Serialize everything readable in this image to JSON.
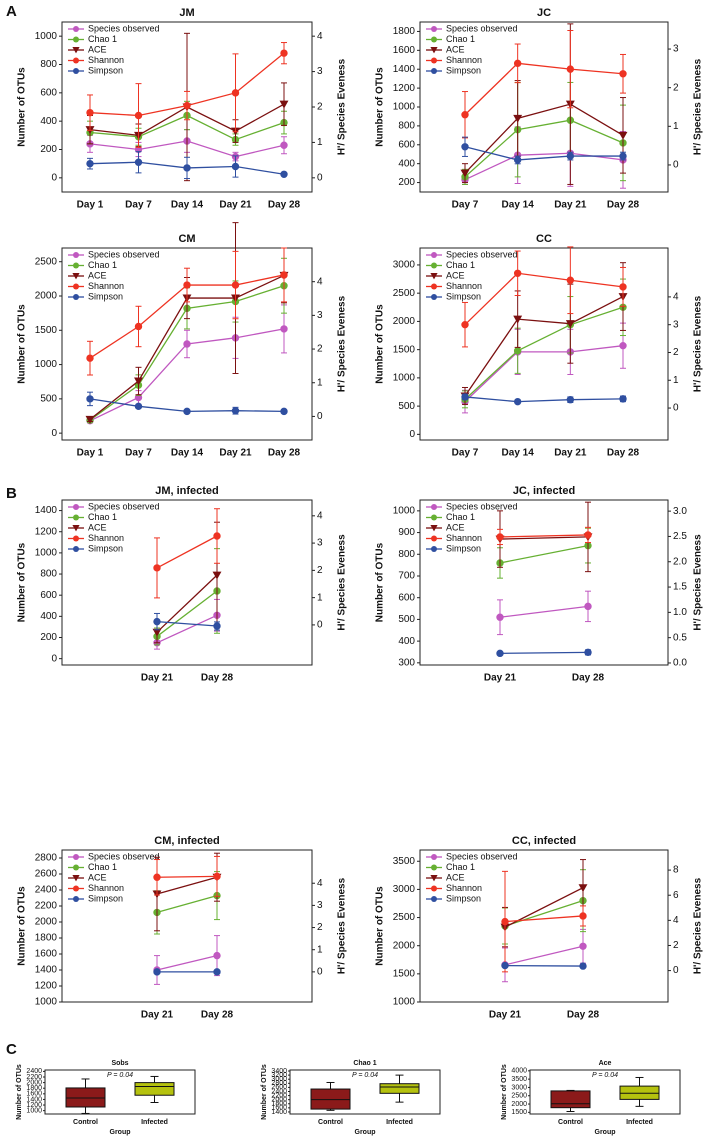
{
  "panels": [
    "A",
    "B",
    "C"
  ],
  "chart_data": [
    {
      "type": "line",
      "title": "JM",
      "categories": [
        "Day 1",
        "Day 7",
        "Day 14",
        "Day 21",
        "Day 28"
      ],
      "ylabel": "Number of OTUs",
      "y2label": "H'/ Species Eveness",
      "legend": "upper left",
      "ylim": [
        -100,
        1100
      ],
      "yticks": [
        0,
        200,
        400,
        600,
        800,
        1000
      ],
      "y2lim": [
        -0.4,
        4.4
      ],
      "y2ticks": [
        0,
        1,
        2,
        3,
        4
      ],
      "series": [
        {
          "name": "Species observed",
          "color": "#c058c0",
          "marker": "circle",
          "values": [
            240,
            200,
            260,
            150,
            230
          ],
          "errors": [
            60,
            50,
            80,
            30,
            60
          ]
        },
        {
          "name": "Chao 1",
          "color": "#66b032",
          "marker": "circle",
          "values": [
            320,
            290,
            440,
            270,
            390
          ],
          "errors": [
            80,
            60,
            100,
            40,
            80
          ]
        },
        {
          "name": "ACE",
          "color": "#7b1010",
          "marker": "triangle-down",
          "values": [
            340,
            300,
            500,
            330,
            520
          ],
          "errors": [
            100,
            80,
            520,
            80,
            150
          ]
        },
        {
          "name": "Shannon",
          "color": "#ee3322",
          "marker": "circle",
          "axis": "y2",
          "values": [
            1.84,
            1.76,
            2.04,
            2.4,
            3.52
          ],
          "errors": [
            0.5,
            0.9,
            0.4,
            1.1,
            0.3
          ]
        },
        {
          "name": "Simpson",
          "color": "#2f4fa0",
          "marker": "circle",
          "axis": "y2",
          "values": [
            0.4,
            0.44,
            0.28,
            0.32,
            0.1
          ],
          "errors": [
            0.15,
            0.3,
            0.3,
            0.3,
            0
          ]
        }
      ]
    },
    {
      "type": "line",
      "title": "JC",
      "categories": [
        "Day 7",
        "Day 14",
        "Day 21",
        "Day 28"
      ],
      "ylabel": "Number of OTUs",
      "y2label": "H'/ Species Eveness",
      "legend": "upper left",
      "ylim": [
        100,
        1900
      ],
      "yticks": [
        200,
        400,
        600,
        800,
        1000,
        1200,
        1400,
        1600,
        1800
      ],
      "y2lim": [
        -0.7,
        3.7
      ],
      "y2ticks": [
        0,
        1,
        2,
        3
      ],
      "series": [
        {
          "name": "Species observed",
          "color": "#c058c0",
          "marker": "circle",
          "values": [
            230,
            490,
            510,
            440
          ],
          "errors": [
            50,
            300,
            350,
            300
          ]
        },
        {
          "name": "Chao 1",
          "color": "#66b032",
          "marker": "circle",
          "values": [
            260,
            760,
            860,
            620
          ],
          "errors": [
            80,
            500,
            400,
            400
          ]
        },
        {
          "name": "ACE",
          "color": "#7b1010",
          "marker": "triangle-down",
          "values": [
            300,
            880,
            1030,
            700
          ],
          "errors": [
            100,
            400,
            850,
            400
          ]
        },
        {
          "name": "Shannon",
          "color": "#ee3322",
          "marker": "circle",
          "axis": "y2",
          "values": [
            1.3,
            2.63,
            2.48,
            2.36
          ],
          "errors": [
            0.6,
            0.5,
            1.0,
            0.5
          ]
        },
        {
          "name": "Simpson",
          "color": "#2f4fa0",
          "marker": "circle",
          "axis": "y2",
          "values": [
            0.47,
            0.13,
            0.23,
            0.23
          ],
          "errors": [
            0.25,
            0.1,
            0.1,
            0.1
          ]
        }
      ]
    },
    {
      "type": "line",
      "title": "CM",
      "categories": [
        "Day 1",
        "Day 7",
        "Day 14",
        "Day 21",
        "Day 28"
      ],
      "ylabel": "Number of OTUs",
      "y2label": "H'/ Species Eveness",
      "legend": "upper left",
      "ylim": [
        -100,
        2700
      ],
      "yticks": [
        0,
        500,
        1000,
        1500,
        2000,
        2500
      ],
      "y2lim": [
        -0.7,
        5.0
      ],
      "y2ticks": [
        0,
        1,
        2,
        3,
        4
      ],
      "series": [
        {
          "name": "Species observed",
          "color": "#c058c0",
          "marker": "circle",
          "values": [
            180,
            520,
            1300,
            1390,
            1520
          ],
          "errors": [
            30,
            100,
            200,
            300,
            350
          ]
        },
        {
          "name": "Chao 1",
          "color": "#66b032",
          "marker": "circle",
          "values": [
            190,
            700,
            1820,
            1920,
            2150
          ],
          "errors": [
            30,
            150,
            300,
            300,
            400
          ]
        },
        {
          "name": "ACE",
          "color": "#7b1010",
          "marker": "triangle-down",
          "values": [
            200,
            760,
            1970,
            1970,
            2300
          ],
          "errors": [
            30,
            200,
            300,
            1100,
            400
          ]
        },
        {
          "name": "Shannon",
          "color": "#ee3322",
          "marker": "circle",
          "axis": "y2",
          "values": [
            1.73,
            2.67,
            3.9,
            3.9,
            4.2
          ],
          "errors": [
            0.5,
            0.6,
            0.5,
            1.0,
            0.8
          ]
        },
        {
          "name": "Simpson",
          "color": "#2f4fa0",
          "marker": "circle",
          "axis": "y2",
          "values": [
            0.52,
            0.3,
            0.15,
            0.17,
            0.15
          ],
          "errors": [
            0.2,
            0.05,
            0.03,
            0.1,
            0.05
          ]
        }
      ]
    },
    {
      "type": "line",
      "title": "CC",
      "categories": [
        "Day 7",
        "Day 14",
        "Day 21",
        "Day 28"
      ],
      "ylabel": "Number of OTUs",
      "y2label": "H'/ Species Eveness",
      "legend": "upper left",
      "ylim": [
        -100,
        3300
      ],
      "yticks": [
        0,
        500,
        1000,
        1500,
        2000,
        2500,
        3000
      ],
      "y2lim": [
        -1.15,
        5.76
      ],
      "y2ticks": [
        0,
        1,
        2,
        3,
        4
      ],
      "series": [
        {
          "name": "Species observed",
          "color": "#c058c0",
          "marker": "circle",
          "values": [
            580,
            1460,
            1460,
            1570
          ],
          "errors": [
            200,
            400,
            400,
            400
          ]
        },
        {
          "name": "Chao 1",
          "color": "#66b032",
          "marker": "circle",
          "values": [
            620,
            1480,
            1940,
            2250
          ],
          "errors": [
            150,
            400,
            500,
            500
          ]
        },
        {
          "name": "ACE",
          "color": "#7b1010",
          "marker": "triangle-down",
          "values": [
            680,
            2040,
            1960,
            2440
          ],
          "errors": [
            150,
            500,
            700,
            600
          ]
        },
        {
          "name": "Shannon",
          "color": "#ee3322",
          "marker": "circle",
          "axis": "y2",
          "values": [
            3.0,
            4.85,
            4.6,
            4.36
          ],
          "errors": [
            0.8,
            0.8,
            1.2,
            0.7
          ]
        },
        {
          "name": "Simpson",
          "color": "#2f4fa0",
          "marker": "circle",
          "axis": "y2",
          "values": [
            0.4,
            0.23,
            0.3,
            0.33
          ],
          "errors": [
            0.1,
            0.05,
            0.1,
            0.1
          ]
        }
      ]
    },
    {
      "type": "line",
      "title": "JM, infected",
      "categories": [
        "Day 21",
        "Day 28"
      ],
      "ylabel": "Number of OTUs",
      "y2label": "H'/ Species Eveness",
      "legend": "upper left",
      "ylim": [
        -60,
        1500
      ],
      "yticks": [
        0,
        200,
        400,
        600,
        800,
        1000,
        1200,
        1400
      ],
      "y2lim": [
        -1.47,
        4.58
      ],
      "y2ticks": [
        0,
        1,
        2,
        3,
        4
      ],
      "series": [
        {
          "name": "Species observed",
          "color": "#c058c0",
          "marker": "circle",
          "values": [
            150,
            410
          ],
          "errors": [
            60,
            150
          ]
        },
        {
          "name": "Chao 1",
          "color": "#66b032",
          "marker": "circle",
          "values": [
            210,
            640
          ],
          "errors": [
            80,
            400
          ]
        },
        {
          "name": "ACE",
          "color": "#7b1010",
          "marker": "triangle-down",
          "values": [
            250,
            790
          ],
          "errors": [
            100,
            500
          ]
        },
        {
          "name": "Shannon",
          "color": "#ee3322",
          "marker": "circle",
          "axis": "y2",
          "values": [
            2.09,
            3.26
          ],
          "errors": [
            1.1,
            1.0
          ]
        },
        {
          "name": "Simpson",
          "color": "#2f4fa0",
          "marker": "circle",
          "axis": "y2",
          "values": [
            0.12,
            -0.04
          ],
          "errors": [
            0.3,
            0.15
          ]
        }
      ]
    },
    {
      "type": "line",
      "title": "JC, infected",
      "categories": [
        "Day 21",
        "Day 28"
      ],
      "ylabel": "Number of OTUs",
      "y2label": "H'/ Species Eveness",
      "legend": "upper left",
      "ylim": [
        290,
        1050
      ],
      "yticks": [
        300,
        400,
        500,
        600,
        700,
        800,
        900,
        1000
      ],
      "y2lim": [
        -0.04,
        3.22
      ],
      "y2ticks": [
        {
          "value": 0,
          "label": "0.0"
        },
        0.5,
        {
          "value": 1,
          "label": "1.0"
        },
        1.5,
        {
          "value": 2,
          "label": "2.0"
        },
        2.5,
        {
          "value": 3,
          "label": "3.0"
        }
      ],
      "series": [
        {
          "name": "Species observed",
          "color": "#c058c0",
          "marker": "circle",
          "values": [
            510,
            560
          ],
          "errors": [
            80,
            70
          ]
        },
        {
          "name": "Chao 1",
          "color": "#66b032",
          "marker": "circle",
          "values": [
            760,
            840
          ],
          "errors": [
            70,
            80
          ]
        },
        {
          "name": "ACE",
          "color": "#7b1010",
          "marker": "triangle-down",
          "values": [
            870,
            880
          ],
          "errors": [
            130,
            160
          ]
        },
        {
          "name": "Shannon",
          "color": "#ee3322",
          "marker": "circle",
          "axis": "y2",
          "values": [
            2.49,
            2.53
          ],
          "errors": [
            0.15,
            0.15
          ]
        },
        {
          "name": "Simpson",
          "color": "#2f4fa0",
          "marker": "circle",
          "axis": "y2",
          "values": [
            0.19,
            0.21
          ],
          "errors": [
            0.03,
            0.05
          ]
        }
      ]
    },
    {
      "type": "line",
      "title": "CM, infected",
      "categories": [
        "Day 21",
        "Day 28"
      ],
      "ylabel": "Number of OTUs",
      "y2label": "H'/ Species Eveness",
      "legend": "upper left",
      "ylim": [
        1000,
        2900
      ],
      "yticks": [
        1000,
        1200,
        1400,
        1600,
        1800,
        2000,
        2200,
        2400,
        2600,
        2800
      ],
      "y2lim": [
        -1.36,
        5.5
      ],
      "y2ticks": [
        0,
        1,
        2,
        3,
        4
      ],
      "series": [
        {
          "name": "Species observed",
          "color": "#c058c0",
          "marker": "circle",
          "values": [
            1400,
            1580
          ],
          "errors": [
            180,
            250
          ]
        },
        {
          "name": "Chao 1",
          "color": "#66b032",
          "marker": "circle",
          "values": [
            2120,
            2330
          ],
          "errors": [
            270,
            300
          ]
        },
        {
          "name": "ACE",
          "color": "#7b1010",
          "marker": "triangle-down",
          "values": [
            2350,
            2560
          ],
          "errors": [
            460,
            300
          ]
        },
        {
          "name": "Shannon",
          "color": "#ee3322",
          "marker": "circle",
          "axis": "y2",
          "values": [
            4.27,
            4.31
          ],
          "errors": [
            0.8,
            0.9
          ]
        },
        {
          "name": "Simpson",
          "color": "#2f4fa0",
          "marker": "circle",
          "axis": "y2",
          "values": [
            0,
            0
          ],
          "errors": [
            0.05,
            0.05
          ]
        }
      ]
    },
    {
      "type": "line",
      "title": "CC, infected",
      "categories": [
        "Day 21",
        "Day 28"
      ],
      "ylabel": "Number of OTUs",
      "y2label": "H'/ Species Eveness",
      "legend": "upper left",
      "ylim": [
        1000,
        3700
      ],
      "yticks": [
        1000,
        1500,
        2000,
        2500,
        3000,
        3500
      ],
      "y2lim": [
        -2.5,
        9.6
      ],
      "y2ticks": [
        0,
        2,
        4,
        6,
        8
      ],
      "series": [
        {
          "name": "Species observed",
          "color": "#c058c0",
          "marker": "circle",
          "values": [
            1660,
            1990
          ],
          "errors": [
            300,
            300
          ]
        },
        {
          "name": "Chao 1",
          "color": "#66b032",
          "marker": "circle",
          "values": [
            2350,
            2800
          ],
          "errors": [
            320,
            550
          ]
        },
        {
          "name": "ACE",
          "color": "#7b1010",
          "marker": "triangle-down",
          "values": [
            2330,
            3030
          ],
          "errors": [
            350,
            500
          ]
        },
        {
          "name": "Shannon",
          "color": "#ee3322",
          "marker": "circle",
          "axis": "y2",
          "values": [
            3.9,
            4.35
          ],
          "errors": [
            4.0,
            0.8
          ]
        },
        {
          "name": "Simpson",
          "color": "#2f4fa0",
          "marker": "circle",
          "axis": "y2",
          "values": [
            0.4,
            0.36
          ],
          "errors": [
            0.05,
            0.05
          ]
        }
      ]
    },
    {
      "type": "box",
      "title": "Sobs",
      "annotation": "P = 0.04",
      "xlabel": "Group",
      "ylabel": "Number of OTUs",
      "categories": [
        "Control",
        "Infected"
      ],
      "ylim": [
        880,
        2450
      ],
      "yticks": [
        1000,
        1200,
        1400,
        1600,
        1800,
        2000,
        2200,
        2400
      ],
      "boxes": [
        {
          "color": "#8b1a1a",
          "min": 900,
          "q1": 1130,
          "median": 1450,
          "q3": 1810,
          "max": 2130
        },
        {
          "color": "#b5c20f",
          "min": 1290,
          "q1": 1550,
          "median": 1860,
          "q3": 2000,
          "max": 2220
        }
      ]
    },
    {
      "type": "box",
      "title": "Chao 1",
      "annotation": "P = 0.04",
      "xlabel": "Group",
      "ylabel": "Number of OTUs",
      "categories": [
        "Control",
        "Infected"
      ],
      "ylim": [
        1300,
        3450
      ],
      "yticks": [
        1400,
        1600,
        1800,
        2000,
        2200,
        2400,
        2600,
        2800,
        3000,
        3200,
        3400
      ],
      "boxes": [
        {
          "color": "#8b1a1a",
          "min": 1480,
          "q1": 1540,
          "median": 2000,
          "q3": 2520,
          "max": 2840
        },
        {
          "color": "#b5c20f",
          "min": 1880,
          "q1": 2310,
          "median": 2620,
          "q3": 2780,
          "max": 3200
        }
      ]
    },
    {
      "type": "box",
      "title": "Ace",
      "annotation": "P = 0.04",
      "xlabel": "Group",
      "ylabel": "Number of OTUs",
      "categories": [
        "Control",
        "Infected"
      ],
      "ylim": [
        1400,
        4050
      ],
      "yticks": [
        1500,
        2000,
        2500,
        3000,
        3500,
        4000
      ],
      "boxes": [
        {
          "color": "#8b1a1a",
          "min": 1550,
          "q1": 1780,
          "median": 2020,
          "q3": 2790,
          "max": 2820
        },
        {
          "color": "#b5c20f",
          "min": 1860,
          "q1": 2280,
          "median": 2650,
          "q3": 3080,
          "max": 3600
        }
      ]
    }
  ]
}
